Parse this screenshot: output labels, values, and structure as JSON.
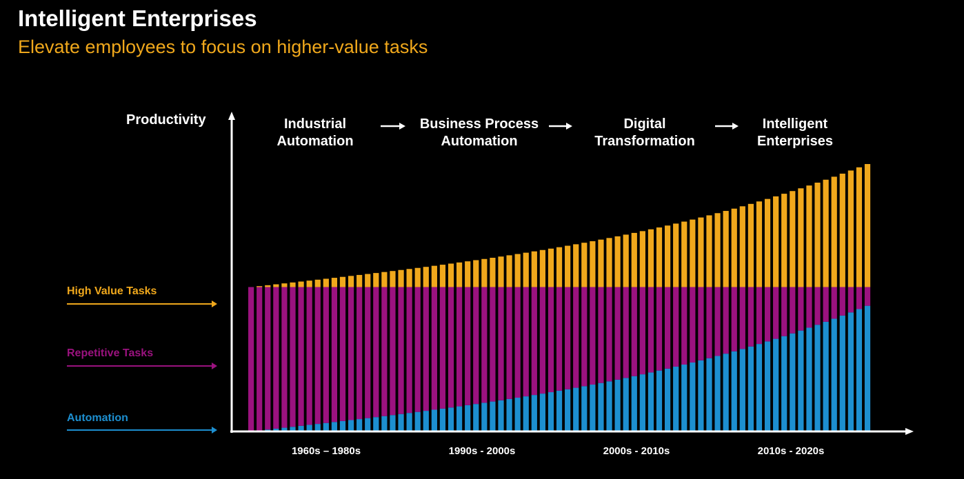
{
  "header": {
    "title": "Intelligent Enterprises",
    "subtitle": "Elevate employees to focus on higher-value tasks"
  },
  "colors": {
    "background": "#000000",
    "high_value": "#f0a81c",
    "repetitive": "#9b127f",
    "automation": "#1d8fd0",
    "axis": "#ffffff"
  },
  "phases": [
    {
      "line1": "Industrial",
      "line2": "Automation"
    },
    {
      "line1": "Business Process",
      "line2": "Automation"
    },
    {
      "line1": "Digital",
      "line2": "Transformation"
    },
    {
      "line1": "Intelligent",
      "line2": "Enterprises"
    }
  ],
  "legend": {
    "high_value": "High Value Tasks",
    "repetitive": "Repetitive Tasks",
    "automation": "Automation"
  },
  "chart_data": {
    "type": "bar",
    "title": "Intelligent Enterprises",
    "ylabel": "Productivity",
    "xlabel": "",
    "categories": [
      "1960s – 1980s",
      "1990s - 2000s",
      "2000s - 2010s",
      "2010s  - 2020s"
    ],
    "bar_count": 75,
    "ylim": [
      0,
      100
    ],
    "grid": false,
    "series": [
      {
        "name": "Automation",
        "start": 0,
        "end": 47,
        "shape": "accelerating"
      },
      {
        "name": "Repetitive Tasks",
        "total_level": 54,
        "shape": "constant-top"
      },
      {
        "name": "High Value Tasks",
        "start": 54,
        "end": 100,
        "shape": "accelerating"
      }
    ]
  }
}
